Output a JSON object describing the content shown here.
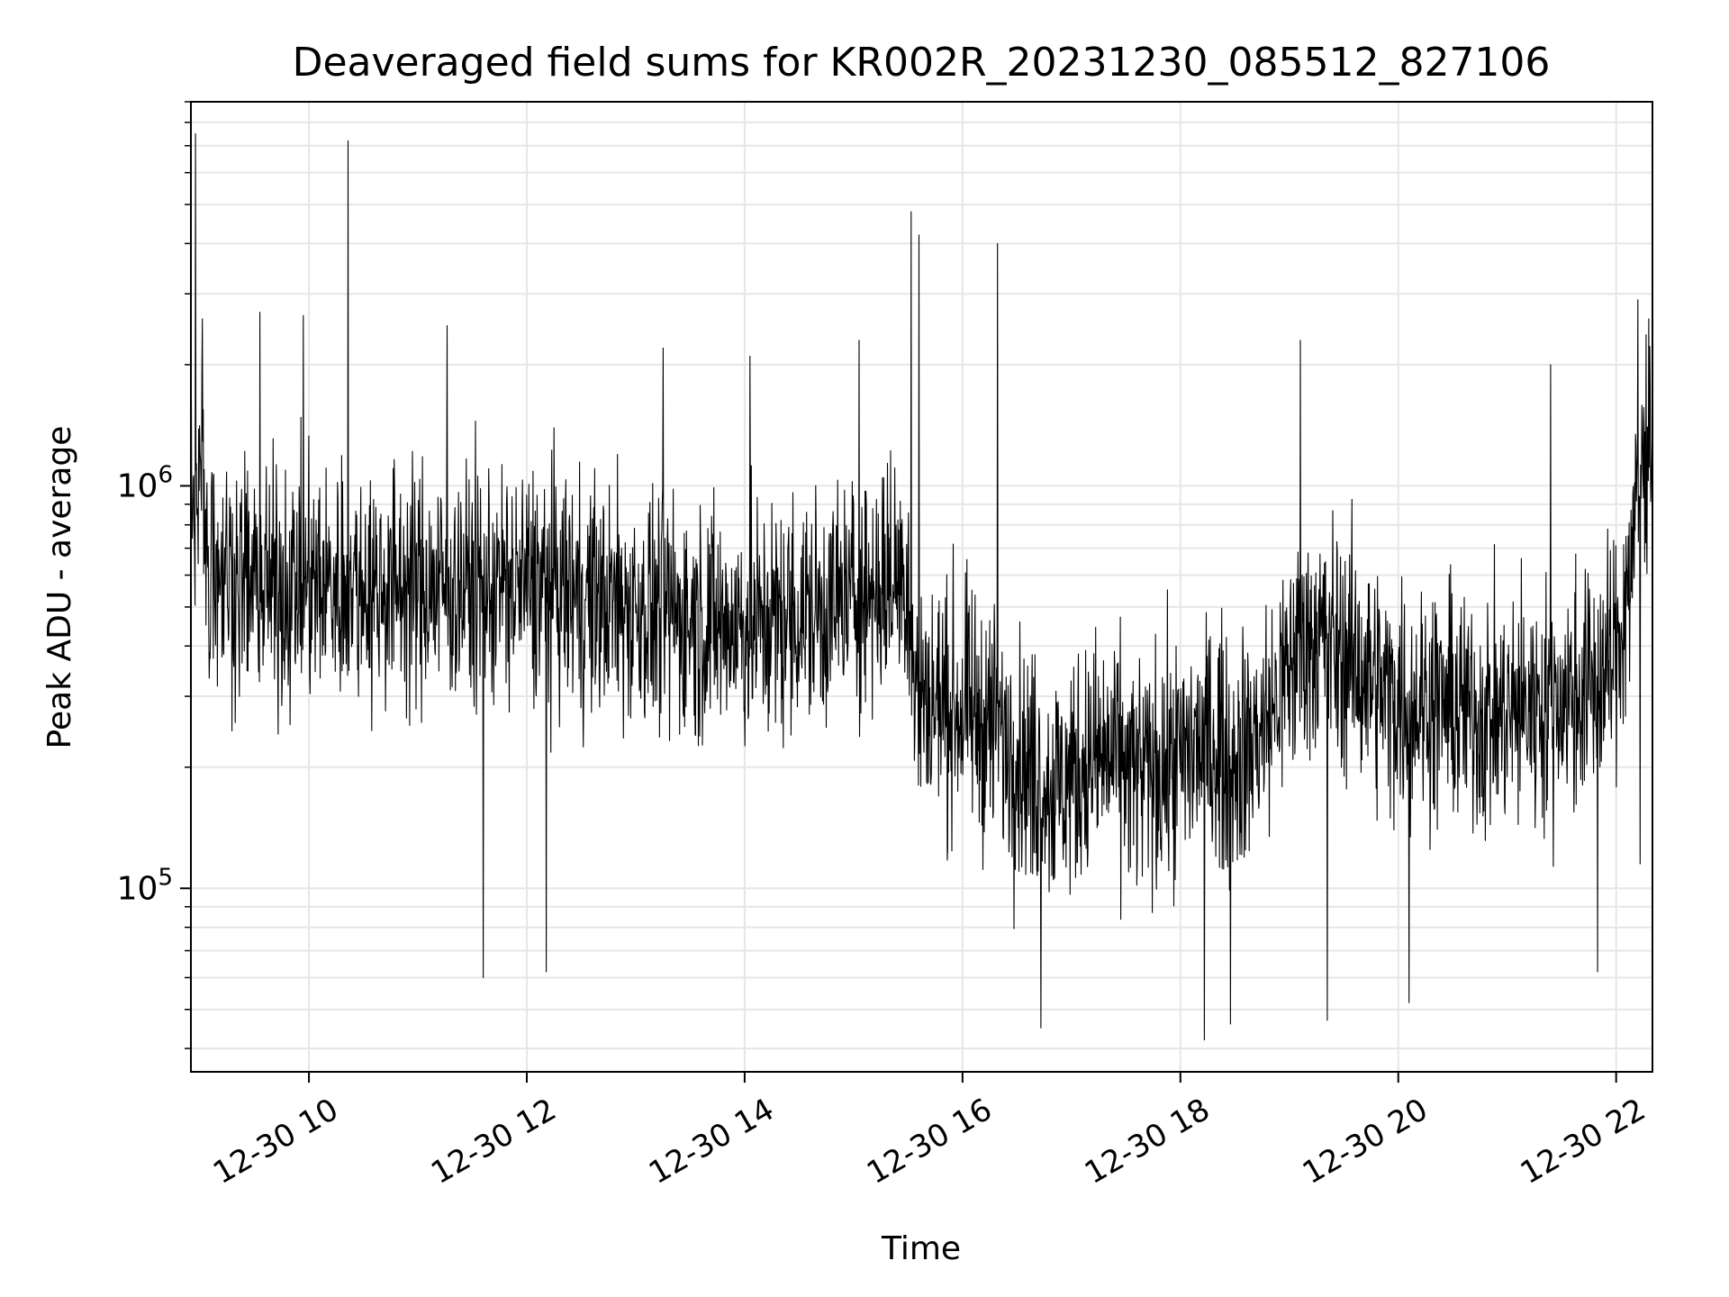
{
  "chart_data": {
    "type": "line",
    "title": "Deaveraged field sums for KR002R_20231230_085512_827106",
    "xlabel": "Time",
    "ylabel": "Peak ADU - average",
    "yscale": "log",
    "xlim": [
      "2023-12-30 08:55",
      "2023-12-30 22:20"
    ],
    "ylim": [
      35000,
      9000000
    ],
    "x_tick_labels": [
      "12-30 10",
      "12-30 12",
      "12-30 14",
      "12-30 16",
      "12-30 18",
      "12-30 20",
      "12-30 22"
    ],
    "x_tick_hours": [
      10,
      12,
      14,
      16,
      18,
      20,
      22
    ],
    "y_tick_labels": [
      {
        "value": 100000,
        "base": "10",
        "exp": "5"
      },
      {
        "value": 1000000,
        "base": "10",
        "exp": "6"
      }
    ],
    "grid": true,
    "line_color": "#000000",
    "series": [
      {
        "description_hint": "",
        "x_hours": [
          8.92,
          9.0,
          9.1,
          9.2,
          9.3,
          9.4,
          9.5,
          9.6,
          9.7,
          9.8,
          9.9,
          10.0,
          10.1,
          10.2,
          10.3,
          10.35,
          10.4,
          10.5,
          10.6,
          10.7,
          10.8,
          10.9,
          11.0,
          11.1,
          11.2,
          11.3,
          11.4,
          11.5,
          11.6,
          11.7,
          11.8,
          11.9,
          12.0,
          12.1,
          12.2,
          12.3,
          12.4,
          12.5,
          12.6,
          12.7,
          12.8,
          12.9,
          13.0,
          13.1,
          13.2,
          13.3,
          13.4,
          13.5,
          13.6,
          13.7,
          13.8,
          13.9,
          14.0,
          14.1,
          14.2,
          14.3,
          14.4,
          14.5,
          14.6,
          14.7,
          14.8,
          14.9,
          15.0,
          15.1,
          15.2,
          15.3,
          15.4,
          15.5,
          15.55,
          15.6,
          15.7,
          15.8,
          15.9,
          16.0,
          16.1,
          16.2,
          16.3,
          16.32,
          16.4,
          16.5,
          16.6,
          16.7,
          16.8,
          16.9,
          17.0,
          17.1,
          17.2,
          17.3,
          17.4,
          17.5,
          17.6,
          17.7,
          17.8,
          17.9,
          18.0,
          18.1,
          18.2,
          18.3,
          18.4,
          18.5,
          18.6,
          18.7,
          18.8,
          18.9,
          19.0,
          19.1,
          19.2,
          19.3,
          19.4,
          19.5,
          19.6,
          19.7,
          19.8,
          19.9,
          20.0,
          20.1,
          20.2,
          20.3,
          20.4,
          20.5,
          20.6,
          20.7,
          20.8,
          20.9,
          21.0,
          21.1,
          21.2,
          21.3,
          21.4,
          21.5,
          21.6,
          21.7,
          21.8,
          21.9,
          22.0,
          22.1,
          22.2,
          22.3
        ],
        "y_mid": [
          1100000,
          750000,
          650000,
          620000,
          600000,
          580000,
          560000,
          560000,
          550000,
          560000,
          560000,
          570000,
          560000,
          560000,
          570000,
          580000,
          560000,
          570000,
          560000,
          570000,
          570000,
          570000,
          560000,
          570000,
          560000,
          560000,
          560000,
          570000,
          560000,
          560000,
          560000,
          560000,
          570000,
          560000,
          560000,
          550000,
          540000,
          530000,
          520000,
          520000,
          510000,
          500000,
          500000,
          490000,
          490000,
          480000,
          480000,
          470000,
          470000,
          460000,
          450000,
          450000,
          450000,
          450000,
          460000,
          460000,
          470000,
          480000,
          480000,
          490000,
          500000,
          520000,
          530000,
          540000,
          560000,
          580000,
          600000,
          600000,
          320000,
          300000,
          290000,
          290000,
          280000,
          280000,
          270000,
          260000,
          250000,
          240000,
          230000,
          220000,
          200000,
          190000,
          180000,
          180000,
          190000,
          200000,
          210000,
          210000,
          210000,
          200000,
          190000,
          190000,
          200000,
          200000,
          210000,
          220000,
          230000,
          230000,
          220000,
          210000,
          220000,
          240000,
          260000,
          300000,
          350000,
          400000,
          420000,
          420000,
          400000,
          380000,
          360000,
          340000,
          320000,
          300000,
          300000,
          290000,
          290000,
          290000,
          290000,
          280000,
          280000,
          270000,
          270000,
          270000,
          270000,
          280000,
          280000,
          290000,
          290000,
          300000,
          300000,
          310000,
          320000,
          340000,
          380000,
          550000,
          900000,
          1500000
        ],
        "spikes": [
          {
            "x": 8.96,
            "y": 7500000
          },
          {
            "x": 9.02,
            "y": 2600000
          },
          {
            "x": 9.55,
            "y": 2700000
          },
          {
            "x": 9.95,
            "y": 2650000
          },
          {
            "x": 10.36,
            "y": 7200000
          },
          {
            "x": 11.27,
            "y": 2500000
          },
          {
            "x": 13.25,
            "y": 2200000
          },
          {
            "x": 14.05,
            "y": 2100000
          },
          {
            "x": 15.05,
            "y": 2300000
          },
          {
            "x": 15.53,
            "y": 4800000
          },
          {
            "x": 15.6,
            "y": 4200000
          },
          {
            "x": 16.32,
            "y": 4000000
          },
          {
            "x": 19.1,
            "y": 2300000
          },
          {
            "x": 21.4,
            "y": 2000000
          },
          {
            "x": 22.2,
            "y": 2900000
          },
          {
            "x": 11.6,
            "y": 60000
          },
          {
            "x": 12.18,
            "y": 62000
          },
          {
            "x": 16.72,
            "y": 45000
          },
          {
            "x": 18.22,
            "y": 42000
          },
          {
            "x": 18.46,
            "y": 46000
          },
          {
            "x": 19.35,
            "y": 47000
          },
          {
            "x": 20.1,
            "y": 52000
          },
          {
            "x": 21.83,
            "y": 62000
          },
          {
            "x": 22.22,
            "y": 115000
          }
        ],
        "spread_decades": 0.55,
        "noise_seed": 827106
      }
    ]
  }
}
